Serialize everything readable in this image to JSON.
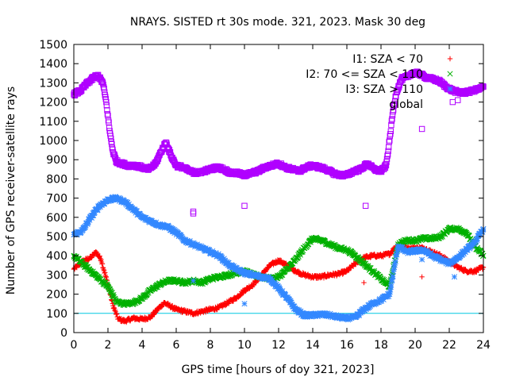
{
  "chart_data": {
    "type": "scatter",
    "title": "NRAYS. SISTED rt 30s mode. 321, 2023. Mask 30 deg",
    "xlabel": "GPS time [hours of doy 321, 2023]",
    "ylabel": "Number of GPS receiver-satellite rays",
    "xlim": [
      0,
      24
    ],
    "ylim": [
      0,
      1500
    ],
    "xticks": [
      "0",
      "2",
      "4",
      "6",
      "8",
      "10",
      "12",
      "14",
      "16",
      "18",
      "20",
      "22",
      "24"
    ],
    "yticks": [
      "0",
      "100",
      "200",
      "300",
      "400",
      "500",
      "600",
      "700",
      "800",
      "900",
      "1000",
      "1100",
      "1200",
      "1300",
      "1400",
      "1500"
    ],
    "threshold_line": 100,
    "legend_position": "top-right",
    "series": [
      {
        "name": "I1: SZA < 70",
        "color": "#ff0000",
        "marker": "plus",
        "x": [
          0,
          0.5,
          1,
          1.3,
          1.6,
          2,
          2.3,
          2.6,
          3,
          3.5,
          4,
          4.5,
          5,
          5.3,
          5.6,
          6,
          6.5,
          7,
          7.5,
          8,
          8.5,
          9,
          9.5,
          10,
          10.5,
          11,
          11.5,
          12,
          12.5,
          13,
          13.5,
          14,
          14.5,
          15,
          15.5,
          16,
          16.5,
          17,
          17.5,
          18,
          18.5,
          18.8,
          19.2,
          19.5,
          20.5,
          21,
          21.5,
          22,
          22.5,
          23,
          23.5,
          24
        ],
        "y": [
          330,
          370,
          390,
          420,
          380,
          250,
          140,
          70,
          60,
          75,
          70,
          80,
          130,
          155,
          140,
          120,
          110,
          100,
          110,
          120,
          130,
          155,
          180,
          220,
          250,
          300,
          350,
          375,
          350,
          320,
          300,
          290,
          290,
          300,
          305,
          320,
          360,
          390,
          400,
          400,
          410,
          440,
          460,
          440,
          440,
          420,
          400,
          370,
          340,
          320,
          320,
          340
        ]
      },
      {
        "name": "I2: 70 <= SZA < 110",
        "color": "#00b000",
        "marker": "cross",
        "x": [
          0,
          0.5,
          1,
          1.5,
          2,
          2.5,
          3,
          3.5,
          4,
          4.5,
          5,
          5.5,
          6,
          6.5,
          7,
          7.5,
          8,
          8.5,
          9,
          9.5,
          10,
          10.5,
          11,
          11.5,
          12,
          12.5,
          13,
          13.5,
          14,
          14.5,
          15,
          15.5,
          16,
          16.5,
          17,
          17.5,
          18,
          18.5,
          19,
          19.5,
          20,
          20.5,
          21,
          21.5,
          22,
          22.5,
          23,
          23.5,
          24
        ],
        "y": [
          400,
          360,
          320,
          280,
          240,
          160,
          150,
          155,
          180,
          220,
          250,
          270,
          270,
          260,
          270,
          260,
          280,
          290,
          300,
          310,
          320,
          300,
          290,
          280,
          290,
          330,
          380,
          440,
          490,
          480,
          460,
          440,
          430,
          400,
          360,
          320,
          280,
          240,
          460,
          480,
          480,
          490,
          490,
          500,
          540,
          540,
          520,
          450,
          400
        ]
      },
      {
        "name": "I3: SZA > 110",
        "color": "#3388ff",
        "marker": "star",
        "x": [
          0,
          0.5,
          1,
          1.5,
          2,
          2.5,
          3,
          3.5,
          4,
          4.5,
          5,
          5.5,
          6,
          6.5,
          7,
          7.5,
          8,
          8.5,
          9,
          9.5,
          10,
          10.5,
          11,
          11.5,
          12,
          12.5,
          13,
          13.5,
          14,
          14.5,
          15,
          15.5,
          16,
          16.5,
          17,
          17.5,
          18,
          18.5,
          19,
          19.5,
          20.5,
          21,
          21.5,
          22,
          22.5,
          23,
          23.5,
          24
        ],
        "y": [
          510,
          530,
          600,
          660,
          690,
          700,
          680,
          640,
          600,
          580,
          560,
          550,
          520,
          480,
          460,
          440,
          420,
          400,
          360,
          330,
          310,
          300,
          290,
          280,
          230,
          180,
          120,
          90,
          90,
          95,
          90,
          80,
          75,
          80,
          120,
          150,
          170,
          200,
          450,
          420,
          430,
          400,
          380,
          360,
          390,
          430,
          470,
          540
        ]
      },
      {
        "name": "global",
        "color": "#b000ff",
        "marker": "square",
        "x": [
          0,
          0.4,
          0.8,
          1.2,
          1.4,
          1.7,
          1.9,
          2.1,
          2.3,
          2.5,
          2.8,
          3.2,
          3.6,
          4,
          4.4,
          4.8,
          5.1,
          5.4,
          5.7,
          6,
          6.4,
          6.8,
          7.2,
          7.6,
          8,
          8.4,
          8.8,
          9.2,
          9.6,
          10,
          10.4,
          10.8,
          11.2,
          11.6,
          12,
          12.4,
          12.8,
          13.2,
          13.6,
          14,
          14.4,
          14.8,
          15.2,
          15.6,
          16,
          16.4,
          16.8,
          17.2,
          17.6,
          18,
          18.3,
          18.5,
          18.7,
          18.9,
          19.2,
          19.5,
          19.8,
          20.2,
          20.6,
          21,
          21.4,
          21.8,
          22.2,
          22.6,
          23,
          23.4,
          23.8,
          24
        ],
        "y": [
          1240,
          1260,
          1300,
          1330,
          1340,
          1300,
          1200,
          1050,
          940,
          890,
          880,
          870,
          870,
          860,
          850,
          880,
          940,
          990,
          920,
          870,
          860,
          840,
          830,
          840,
          850,
          860,
          850,
          830,
          830,
          820,
          830,
          840,
          860,
          870,
          880,
          860,
          850,
          840,
          860,
          870,
          860,
          850,
          830,
          820,
          820,
          840,
          850,
          880,
          850,
          840,
          870,
          1000,
          1150,
          1250,
          1320,
          1330,
          1350,
          1350,
          1330,
          1320,
          1310,
          1280,
          1260,
          1250,
          1250,
          1260,
          1270,
          1280
        ]
      }
    ],
    "outliers": [
      {
        "series": "global",
        "x": 7.0,
        "y": 630
      },
      {
        "series": "global",
        "x": 7.0,
        "y": 620
      },
      {
        "series": "global",
        "x": 10.0,
        "y": 660
      },
      {
        "series": "global",
        "x": 17.1,
        "y": 660
      },
      {
        "series": "global",
        "x": 20.4,
        "y": 1060
      },
      {
        "series": "global",
        "x": 22.2,
        "y": 1200
      },
      {
        "series": "global",
        "x": 22.5,
        "y": 1210
      },
      {
        "series": "I3: SZA > 110",
        "x": 10.0,
        "y": 150
      },
      {
        "series": "I3: SZA > 110",
        "x": 20.4,
        "y": 380
      },
      {
        "series": "I3: SZA > 110",
        "x": 22.3,
        "y": 290
      },
      {
        "series": "I3: SZA > 110",
        "x": 7.0,
        "y": 270
      },
      {
        "series": "I1: SZA < 70",
        "x": 17.0,
        "y": 260
      },
      {
        "series": "I1: SZA < 70",
        "x": 20.4,
        "y": 290
      }
    ]
  }
}
